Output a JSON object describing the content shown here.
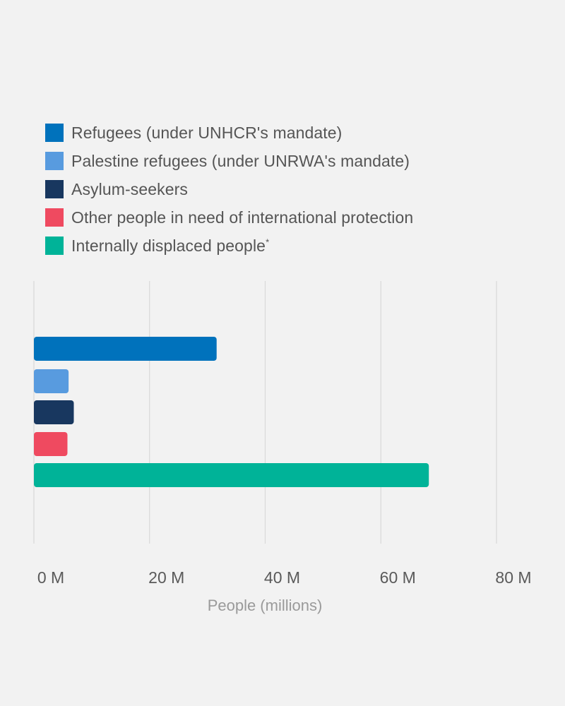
{
  "chart_data": {
    "type": "bar",
    "orientation": "horizontal",
    "series": [
      {
        "name": "Refugees (under UNHCR's mandate)",
        "value": 31.6,
        "color": "#0072bc"
      },
      {
        "name": "Palestine refugees (under UNRWA's mandate)",
        "value": 6.0,
        "color": "#589bdf"
      },
      {
        "name": "Asylum-seekers",
        "value": 6.9,
        "color": "#18375f"
      },
      {
        "name": "Other people in need of international protection",
        "value": 5.8,
        "color": "#ef4a60"
      },
      {
        "name": "Internally displaced people",
        "value": 68.3,
        "color": "#00b398"
      }
    ],
    "legend": [
      {
        "label": "Refugees (under UNHCR's mandate)",
        "marker": ""
      },
      {
        "label": "Palestine refugees (under UNRWA's mandate)",
        "marker": ""
      },
      {
        "label": "Asylum-seekers",
        "marker": ""
      },
      {
        "label": "Other people in need of international protection",
        "marker": ""
      },
      {
        "label": "Internally displaced people",
        "marker": "*"
      }
    ],
    "xaxis": {
      "ticks": [
        0,
        20,
        40,
        60,
        80
      ],
      "tick_labels": [
        "0 M",
        "20 M",
        "40 M",
        "60 M",
        "80 M"
      ],
      "label": "People (millions)",
      "range": [
        0,
        80
      ]
    },
    "grid": true,
    "legend_position": "top-left"
  }
}
